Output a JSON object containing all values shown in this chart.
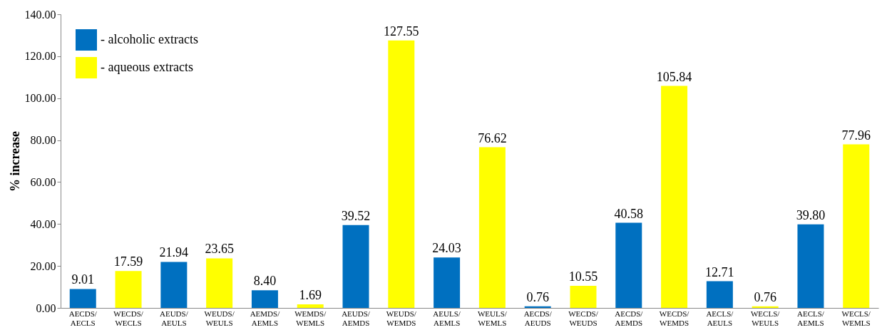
{
  "chart_data": {
    "type": "bar",
    "ylabel": "% increase",
    "categories": [
      "AECDS/AECLS",
      "WECDS/WECLS",
      "AEUDS/AEULS",
      "WEUDS/WEULS",
      "AEMDS/AEMLS",
      "WEMDS/WEMLS",
      "AEUDS/AEMDS",
      "WEUDS/WEMDS",
      "AEULS/AEMLS",
      "WEULS/WEMLS",
      "AECDS/AEUDS",
      "WECDS/WEUDS",
      "AECDS/AEMDS",
      "WECDS/WEMDS",
      "AECLS/AEULS",
      "WECLS/WEULS",
      "AECLS/AEMLS",
      "WECLS/WEMLS"
    ],
    "series": [
      {
        "name": "- alcoholic extracts",
        "color": "#0070c0",
        "values": [
          9.01,
          null,
          21.94,
          null,
          8.4,
          null,
          39.52,
          null,
          24.03,
          null,
          0.76,
          null,
          40.58,
          null,
          12.71,
          null,
          39.8,
          null
        ],
        "value_labels": [
          "9.01",
          null,
          "21.94",
          null,
          "8.40",
          null,
          "39.52",
          null,
          "24.03",
          null,
          "0.76",
          null,
          "40.58",
          null,
          "12.71",
          null,
          "39.80",
          null
        ]
      },
      {
        "name": "- aqueous extracts",
        "color": "#ffff00",
        "values": [
          null,
          17.59,
          null,
          23.65,
          null,
          1.69,
          null,
          127.55,
          null,
          76.62,
          null,
          10.55,
          null,
          105.84,
          null,
          0.76,
          null,
          77.96
        ],
        "value_labels": [
          null,
          "17.59",
          null,
          "23.65",
          null,
          "1.69",
          null,
          "127.55",
          null,
          "76.62",
          null,
          "10.55",
          null,
          "105.84",
          null,
          "0.76",
          null,
          "77.96"
        ]
      }
    ],
    "ylim": [
      0,
      140
    ],
    "yticks": [
      {
        "value": 0,
        "label": "0.00"
      },
      {
        "value": 20,
        "label": "20.00"
      },
      {
        "value": 40,
        "label": "40.00"
      },
      {
        "value": 60,
        "label": "60.00"
      },
      {
        "value": 80,
        "label": "80.00"
      },
      {
        "value": 100,
        "label": "100.00"
      },
      {
        "value": 120,
        "label": "120.00"
      },
      {
        "value": 140,
        "label": "140.00"
      }
    ],
    "grid": false,
    "legend": "top left"
  }
}
